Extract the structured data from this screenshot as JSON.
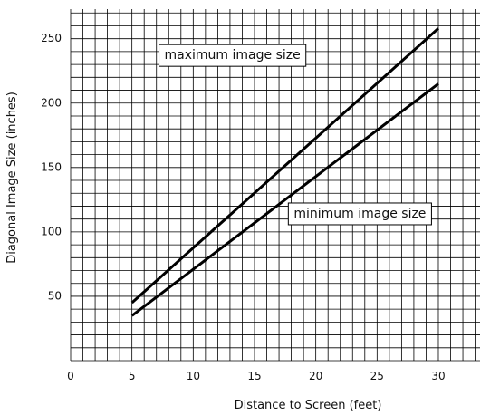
{
  "chart_data": {
    "type": "line",
    "xlabel": "Distance to Screen (feet)",
    "ylabel": "Diagonal Image Size (inches)",
    "xlim": [
      0,
      33.4
    ],
    "ylim": [
      0,
      273
    ],
    "x_ticks": [
      0,
      5,
      10,
      15,
      20,
      25,
      30
    ],
    "y_ticks": [
      50,
      100,
      150,
      200,
      250
    ],
    "grid": true,
    "grid_minor_step_x": 1,
    "grid_minor_step_y": 10,
    "series": [
      {
        "name": "maximum image size",
        "x": [
          5,
          30
        ],
        "y": [
          45,
          258
        ]
      },
      {
        "name": "minimum image size",
        "x": [
          5,
          30
        ],
        "y": [
          35,
          215
        ]
      }
    ],
    "annotations": [
      {
        "text": "maximum image size",
        "series": 0,
        "x": 13.2,
        "y": 237
      },
      {
        "text": "minimum image size",
        "series": 1,
        "x": 23.6,
        "y": 114
      }
    ]
  }
}
